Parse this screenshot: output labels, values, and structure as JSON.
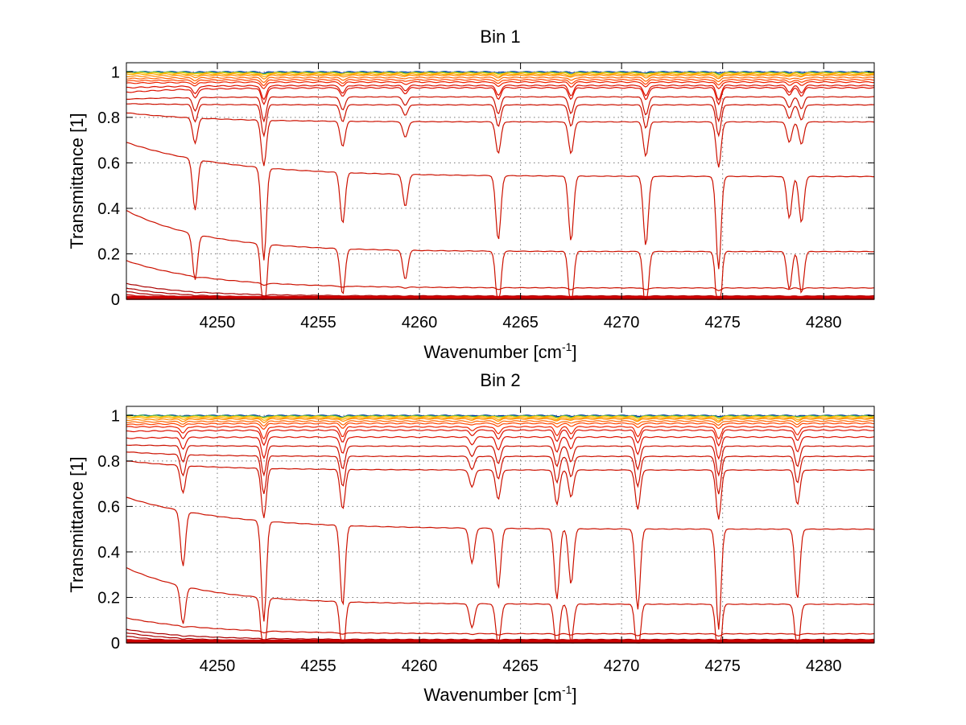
{
  "chart_data": [
    {
      "type": "line",
      "title": "Bin 1",
      "xlabel": "Wavenumber [cm",
      "xlabel_sup": "-1",
      "xlabel_tail": "]",
      "ylabel": "Transmittance [1]",
      "xlim": [
        4245.5,
        4282.5
      ],
      "ylim": [
        0,
        1.04
      ],
      "xticks": [
        "4250",
        "4255",
        "4260",
        "4265",
        "4270",
        "4275",
        "4280"
      ],
      "yticks": [
        "0",
        "0.2",
        "0.4",
        "0.6",
        "0.8",
        "1"
      ],
      "grid": true,
      "absorption_lines": [
        4248.9,
        4252.3,
        4256.2,
        4259.3,
        4263.9,
        4267.5,
        4271.2,
        4274.8,
        4278.3,
        4278.9
      ],
      "line_strengths": [
        0.55,
        1.0,
        0.55,
        0.35,
        0.7,
        0.7,
        0.75,
        1.0,
        0.45,
        0.5
      ],
      "series": [
        {
          "base": 1.0,
          "start": 1.0,
          "decay": 3,
          "color": "#0033aa"
        },
        {
          "base": 0.997,
          "start": 1.0,
          "decay": 3,
          "color": "#33aa55"
        },
        {
          "base": 0.995,
          "start": 0.995,
          "decay": 3,
          "color": "#ffcc00"
        },
        {
          "base": 0.99,
          "start": 0.99,
          "decay": 3,
          "color": "#ffaa00"
        },
        {
          "base": 0.985,
          "start": 0.98,
          "decay": 3,
          "color": "#ff8800"
        },
        {
          "base": 0.975,
          "start": 0.97,
          "decay": 3,
          "color": "#ff6600"
        },
        {
          "base": 0.965,
          "start": 0.96,
          "decay": 3,
          "color": "#ff4400"
        },
        {
          "base": 0.955,
          "start": 0.95,
          "decay": 3,
          "color": "#ee2200"
        },
        {
          "base": 0.94,
          "start": 0.93,
          "decay": 3,
          "color": "#dd1100"
        },
        {
          "base": 0.93,
          "start": 0.91,
          "decay": 3,
          "color": "#dd1100"
        },
        {
          "base": 0.89,
          "start": 0.88,
          "decay": 3,
          "color": "#cc1100"
        },
        {
          "base": 0.855,
          "start": 0.86,
          "decay": 3,
          "color": "#cc1100"
        },
        {
          "base": 0.78,
          "start": 0.82,
          "decay": 4,
          "color": "#cc1100"
        },
        {
          "base": 0.54,
          "start": 0.69,
          "decay": 5,
          "color": "#cc1100"
        },
        {
          "base": 0.21,
          "start": 0.39,
          "decay": 4,
          "color": "#cc1100"
        },
        {
          "base": 0.05,
          "start": 0.17,
          "decay": 4,
          "color": "#cc1100"
        },
        {
          "base": 0.015,
          "start": 0.07,
          "decay": 3,
          "color": "#aa0000"
        },
        {
          "base": 0.008,
          "start": 0.05,
          "decay": 2.5,
          "color": "#aa0000"
        },
        {
          "base": 0.004,
          "start": 0.035,
          "decay": 2,
          "color": "#aa0000"
        },
        {
          "base": 0.002,
          "start": 0.02,
          "decay": 2,
          "color": "#cc0000"
        }
      ]
    },
    {
      "type": "line",
      "title": "Bin 2",
      "xlabel": "Wavenumber [cm",
      "xlabel_sup": "-1",
      "xlabel_tail": "]",
      "ylabel": "Transmittance [1]",
      "xlim": [
        4245.5,
        4282.5
      ],
      "ylim": [
        0,
        1.04
      ],
      "xticks": [
        "4250",
        "4255",
        "4260",
        "4265",
        "4270",
        "4275",
        "4280"
      ],
      "yticks": [
        "0",
        "0.2",
        "0.4",
        "0.6",
        "0.8",
        "1"
      ],
      "grid": true,
      "absorption_lines": [
        4248.3,
        4252.3,
        4256.2,
        4262.6,
        4263.9,
        4266.8,
        4267.5,
        4270.8,
        4274.8,
        4278.7
      ],
      "line_strengths": [
        0.55,
        1.0,
        0.8,
        0.35,
        0.6,
        0.7,
        0.55,
        0.8,
        1.0,
        0.7
      ],
      "series": [
        {
          "base": 1.0,
          "start": 1.0,
          "decay": 3,
          "color": "#0033aa"
        },
        {
          "base": 0.998,
          "start": 1.0,
          "decay": 3,
          "color": "#33aa55"
        },
        {
          "base": 0.995,
          "start": 0.995,
          "decay": 3,
          "color": "#ffcc00"
        },
        {
          "base": 0.99,
          "start": 0.99,
          "decay": 3,
          "color": "#ffaa00"
        },
        {
          "base": 0.985,
          "start": 0.98,
          "decay": 3,
          "color": "#ff8800"
        },
        {
          "base": 0.975,
          "start": 0.97,
          "decay": 3,
          "color": "#ff6600"
        },
        {
          "base": 0.965,
          "start": 0.96,
          "decay": 3,
          "color": "#ff4400"
        },
        {
          "base": 0.95,
          "start": 0.95,
          "decay": 3,
          "color": "#ee2200"
        },
        {
          "base": 0.935,
          "start": 0.93,
          "decay": 3,
          "color": "#dd1100"
        },
        {
          "base": 0.905,
          "start": 0.9,
          "decay": 3,
          "color": "#dd1100"
        },
        {
          "base": 0.865,
          "start": 0.87,
          "decay": 3,
          "color": "#cc1100"
        },
        {
          "base": 0.82,
          "start": 0.84,
          "decay": 3,
          "color": "#cc1100"
        },
        {
          "base": 0.76,
          "start": 0.8,
          "decay": 4,
          "color": "#cc1100"
        },
        {
          "base": 0.5,
          "start": 0.64,
          "decay": 5,
          "color": "#cc1100"
        },
        {
          "base": 0.17,
          "start": 0.33,
          "decay": 4,
          "color": "#cc1100"
        },
        {
          "base": 0.04,
          "start": 0.11,
          "decay": 4,
          "color": "#cc1100"
        },
        {
          "base": 0.015,
          "start": 0.06,
          "decay": 3,
          "color": "#aa0000"
        },
        {
          "base": 0.008,
          "start": 0.045,
          "decay": 2.5,
          "color": "#aa0000"
        },
        {
          "base": 0.004,
          "start": 0.03,
          "decay": 2,
          "color": "#aa0000"
        },
        {
          "base": 0.002,
          "start": 0.015,
          "decay": 2,
          "color": "#cc0000"
        }
      ]
    }
  ]
}
